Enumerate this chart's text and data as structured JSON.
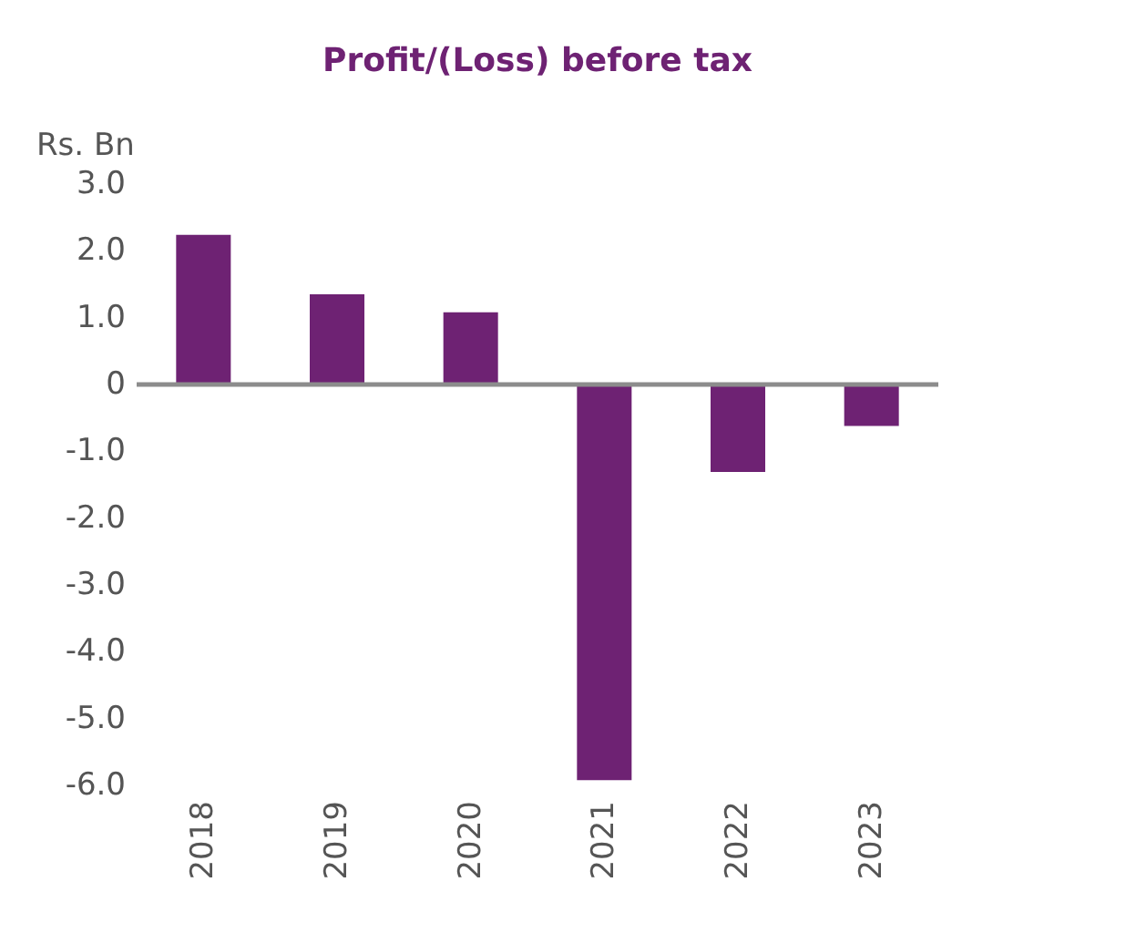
{
  "chart_data": {
    "type": "bar",
    "title": "Profit/(Loss) before tax",
    "ylabel": "Rs. Bn",
    "categories": [
      "2018",
      "2019",
      "2020",
      "2021",
      "2022",
      "2023"
    ],
    "values": [
      2.24,
      1.35,
      1.08,
      -5.92,
      -1.31,
      -0.62
    ],
    "color": "#6e2273",
    "ylim": [
      -6.0,
      3.0
    ],
    "yticks": [
      {
        "value": 3,
        "label": "3.0"
      },
      {
        "value": 2,
        "label": "2.0"
      },
      {
        "value": 1,
        "label": "1.0"
      },
      0,
      {
        "value": -1,
        "label": "-1.0"
      },
      {
        "value": -2,
        "label": "-2.0"
      },
      {
        "value": -3,
        "label": "-3.0"
      },
      {
        "value": -4,
        "label": "-4.0"
      },
      {
        "value": -5,
        "label": "-5.0"
      },
      {
        "value": -6,
        "label": "-6.0"
      }
    ],
    "ref_lines": [
      {
        "axis": "y",
        "value": 0,
        "color": "#8c8c8c"
      }
    ],
    "grid": false
  }
}
